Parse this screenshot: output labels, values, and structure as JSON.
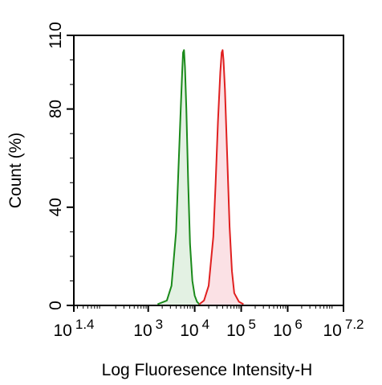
{
  "chart_data": {
    "type": "area",
    "title": "",
    "xlabel": "Log Fluoresence Intensity-H",
    "ylabel": "Count (%)",
    "x_scale": "log",
    "xlim": [
      25.12,
      15848932
    ],
    "ylim": [
      0,
      110
    ],
    "x_ticks": [
      {
        "base": "10",
        "exp": "1.4",
        "value": 25.12
      },
      {
        "base": "10",
        "exp": "3",
        "value": 1000
      },
      {
        "base": "10",
        "exp": "4",
        "value": 10000
      },
      {
        "base": "10",
        "exp": "5",
        "value": 100000
      },
      {
        "base": "10",
        "exp": "6",
        "value": 1000000
      },
      {
        "base": "10",
        "exp": "7.2",
        "value": 15848932
      }
    ],
    "y_ticks": [
      {
        "label": "0",
        "value": 0
      },
      {
        "label": "40",
        "value": 40
      },
      {
        "label": "80",
        "value": 80
      },
      {
        "label": "110",
        "value": 110
      }
    ],
    "grid": false,
    "legend": "none",
    "series": [
      {
        "color": "#1a8a1a",
        "fill": "#e3f1e3",
        "x": [
          1585,
          2512,
          3162,
          3981,
          4467,
          5012,
          5370,
          5623,
          5888,
          6166,
          6607,
          7244,
          7943,
          8913,
          10000,
          11220,
          12589
        ],
        "y": [
          0.5,
          2,
          8,
          30,
          55,
          80,
          95,
          103,
          104,
          97,
          80,
          50,
          25,
          10,
          4,
          1.5,
          0.5
        ]
      },
      {
        "color": "#e02020",
        "fill": "#fbe1e5",
        "x": [
          12589,
          15849,
          19953,
          25119,
          28184,
          31623,
          35481,
          38019,
          39811,
          41687,
          44668,
          50119,
          56234,
          63096,
          70795,
          89125,
          112202
        ],
        "y": [
          0.5,
          2,
          8,
          28,
          50,
          75,
          95,
          103,
          104,
          100,
          88,
          60,
          32,
          14,
          5,
          1.5,
          0.5
        ]
      }
    ]
  }
}
